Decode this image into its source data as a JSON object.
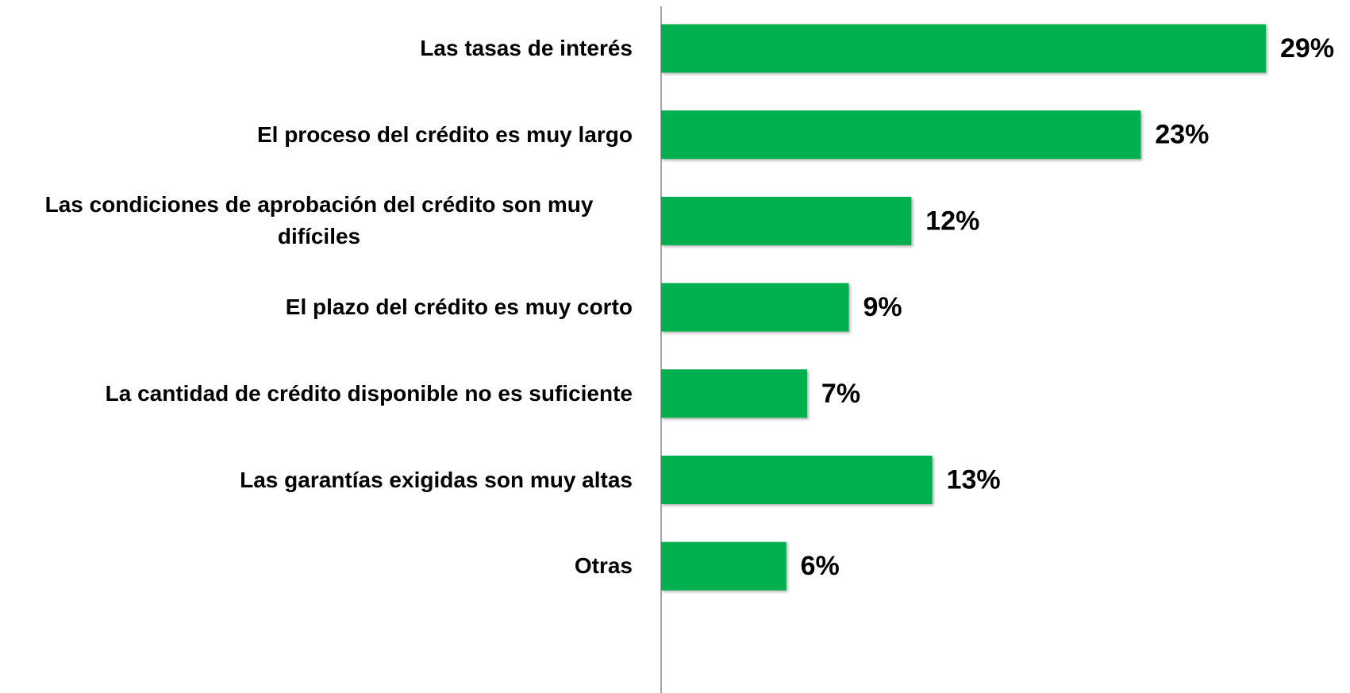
{
  "chart_data": {
    "type": "bar",
    "orientation": "horizontal",
    "categories": [
      "Las tasas de interés",
      "El proceso del crédito es muy largo",
      "Las condiciones de aprobación del crédito son muy difíciles",
      "El plazo del crédito es muy corto",
      "La cantidad de crédito disponible no es suficiente",
      "Las garantías exigidas son muy altas",
      "Otras"
    ],
    "values": [
      29,
      23,
      12,
      9,
      7,
      13,
      6
    ],
    "value_labels": [
      "29%",
      "23%",
      "12%",
      "9%",
      "7%",
      "13%",
      "6%"
    ],
    "color": "#00b050"
  }
}
